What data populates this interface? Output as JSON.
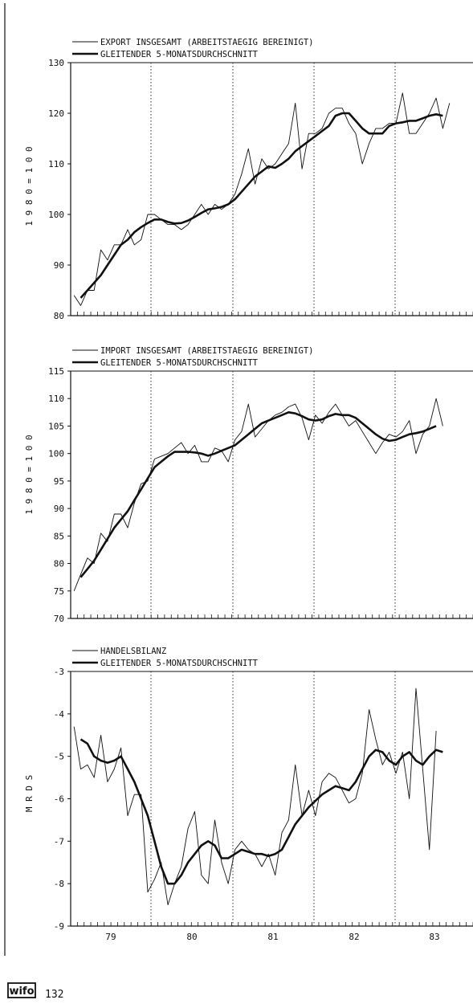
{
  "chart_data": [
    {
      "type": "line",
      "legend": [
        "EXPORT INSGESAMT (ARBEITSTAEGIG BEREINIGT)",
        "GLEITENDER 5-MONATSDURCHSCHNITT"
      ],
      "ylabel": "1 9 8 0 = 1 0 0",
      "ylim": [
        80,
        130
      ],
      "yticks": [
        80,
        90,
        100,
        110,
        120,
        130
      ],
      "year_ticks": [
        79,
        80,
        81,
        82,
        83
      ],
      "grid": "vertical dotted at year boundaries",
      "series": [
        {
          "name": "EXPORT INSGESAMT (ARBEITSTAEGIG BEREINIGT)",
          "style": "thin",
          "values": [
            84,
            82,
            85,
            85,
            93,
            91,
            94,
            94,
            97,
            94,
            95,
            100,
            100,
            99,
            98,
            98,
            97,
            98,
            100,
            102,
            100,
            102,
            101,
            102,
            104,
            108,
            113,
            106,
            111,
            109,
            110,
            112,
            114,
            122,
            109,
            116,
            116,
            117,
            120,
            121,
            121,
            118,
            116,
            110,
            114,
            117,
            117,
            118,
            118,
            124,
            116,
            116,
            118,
            120,
            123,
            117,
            122
          ]
        },
        {
          "name": "GLEITENDER 5-MONATSDURCHSCHNITT",
          "style": "thick",
          "values": [
            83.5,
            85,
            86.5,
            88,
            90,
            92,
            94,
            95,
            96.5,
            97.5,
            98.3,
            99,
            99,
            98.5,
            98.2,
            98.3,
            98.8,
            99.5,
            100.3,
            101,
            101.2,
            101.5,
            102,
            103,
            104.5,
            106,
            107.5,
            108.5,
            109.5,
            109.2,
            110,
            111,
            112.5,
            113.5,
            114.5,
            115.5,
            116.5,
            117.5,
            119.5,
            120,
            120,
            118.5,
            117,
            116,
            116,
            116,
            117.5,
            118,
            118.2,
            118.5,
            118.5,
            119,
            119.5,
            119.8,
            119.5
          ]
        }
      ]
    },
    {
      "type": "line",
      "legend": [
        "IMPORT INSGESAMT (ARBEITSTAEGIG BEREINIGT)",
        "GLEITENDER 5-MONATSDURCHSCHNITT"
      ],
      "ylabel": "1 9 8 0 = 1 0 0",
      "ylim": [
        70,
        115
      ],
      "yticks": [
        70,
        75,
        80,
        85,
        90,
        95,
        100,
        105,
        110,
        115
      ],
      "year_ticks": [
        79,
        80,
        81,
        82,
        83
      ],
      "grid": "vertical dotted at year boundaries",
      "series": [
        {
          "name": "IMPORT INSGESAMT (ARBEITSTAEGIG BEREINIGT)",
          "style": "thin",
          "values": [
            75,
            78,
            81,
            80,
            85.5,
            84,
            89,
            89,
            86.5,
            91,
            94.5,
            95,
            99,
            99.5,
            100,
            101,
            102,
            100,
            101.5,
            98.5,
            98.5,
            101,
            100.5,
            98.5,
            102.5,
            104,
            109,
            103,
            104.5,
            106,
            107,
            107.5,
            108.5,
            109,
            106.5,
            102.5,
            107,
            105.5,
            107.5,
            109,
            107,
            105,
            106,
            104,
            102,
            100,
            102,
            103.5,
            103,
            104,
            106,
            100,
            103.5,
            105,
            110,
            105
          ]
        },
        {
          "name": "GLEITENDER 5-MONATSDURCHSCHNITT",
          "style": "thick",
          "values": [
            77.5,
            79,
            80.5,
            82.5,
            84.5,
            86.5,
            88,
            89.5,
            91.5,
            93.5,
            95.5,
            97.5,
            98.5,
            99.5,
            100.3,
            100.3,
            100.3,
            100.2,
            100,
            99.6,
            100,
            100.5,
            101,
            101.5,
            102.5,
            103.5,
            104.5,
            105.5,
            106,
            106.5,
            107,
            107.5,
            107.3,
            106.8,
            106.2,
            106,
            106.2,
            106.8,
            107.2,
            107,
            107,
            106.5,
            105.5,
            104.5,
            103.5,
            102.7,
            102.3,
            102.5,
            103,
            103.5,
            103.7,
            104,
            104.5,
            105
          ]
        }
      ]
    },
    {
      "type": "line",
      "legend": [
        "HANDELSBILANZ",
        "GLEITENDER 5-MONATSDURCHSCHNITT"
      ],
      "ylabel": "M R D   S",
      "ylim": [
        -9,
        -3
      ],
      "yticks": [
        -9,
        -8,
        -7,
        -6,
        -5,
        -4,
        -3
      ],
      "year_ticks": [
        79,
        80,
        81,
        82,
        83
      ],
      "grid": "vertical dotted at year boundaries",
      "series": [
        {
          "name": "HANDELSBILANZ",
          "style": "thin",
          "values": [
            -4.3,
            -5.3,
            -5.2,
            -5.5,
            -4.5,
            -5.6,
            -5.3,
            -4.8,
            -6.4,
            -5.9,
            -5.9,
            -8.2,
            -7.9,
            -7.5,
            -8.5,
            -8.0,
            -7.6,
            -6.7,
            -6.3,
            -7.8,
            -8.0,
            -6.5,
            -7.5,
            -8.0,
            -7.2,
            -7.0,
            -7.2,
            -7.3,
            -7.6,
            -7.3,
            -7.8,
            -6.8,
            -6.5,
            -5.2,
            -6.4,
            -5.8,
            -6.4,
            -5.6,
            -5.4,
            -5.5,
            -5.8,
            -6.1,
            -6.0,
            -5.4,
            -3.9,
            -4.6,
            -5.2,
            -4.9,
            -5.4,
            -4.9,
            -6.0,
            -3.4,
            -5.3,
            -7.2,
            -4.4
          ]
        },
        {
          "name": "GLEITENDER 5-MONATSDURCHSCHNITT",
          "style": "thick",
          "values": [
            -4.6,
            -4.7,
            -5.0,
            -5.1,
            -5.15,
            -5.1,
            -5.0,
            -5.3,
            -5.6,
            -6.0,
            -6.4,
            -7.0,
            -7.6,
            -8.0,
            -8.0,
            -7.8,
            -7.5,
            -7.3,
            -7.1,
            -7.0,
            -7.1,
            -7.4,
            -7.4,
            -7.3,
            -7.2,
            -7.25,
            -7.3,
            -7.3,
            -7.35,
            -7.3,
            -7.2,
            -6.9,
            -6.6,
            -6.4,
            -6.2,
            -6.05,
            -5.9,
            -5.8,
            -5.7,
            -5.75,
            -5.8,
            -5.6,
            -5.3,
            -5.0,
            -4.85,
            -4.9,
            -5.1,
            -5.2,
            -5.0,
            -4.9,
            -5.1,
            -5.2,
            -5.0,
            -4.85,
            -4.9
          ]
        }
      ]
    }
  ],
  "footer": {
    "page_number": "132",
    "logo_text": "wifo"
  }
}
